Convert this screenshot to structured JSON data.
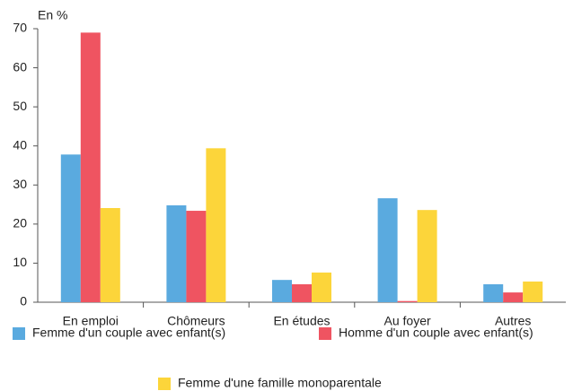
{
  "chart_data": {
    "type": "bar",
    "y_label": "En %",
    "categories": [
      "En emploi",
      "Chômeurs",
      "En études",
      "Au foyer",
      "Autres"
    ],
    "series": [
      {
        "name": "Femme d'un couple avec enfant(s)",
        "color": "#5aaadf",
        "values": [
          37.8,
          24.8,
          5.7,
          26.6,
          4.6
        ]
      },
      {
        "name": "Homme d'un couple avec enfant(s)",
        "color": "#ef5461",
        "values": [
          69,
          23.4,
          4.6,
          0.3,
          2.5
        ]
      },
      {
        "name": "Femme d'une famille monoparentale",
        "color": "#fcd53a",
        "values": [
          24.1,
          39.4,
          7.6,
          23.6,
          5.3
        ]
      }
    ],
    "ylim": [
      0,
      70
    ],
    "yticks": [
      0,
      10,
      20,
      30,
      40,
      50,
      60,
      70
    ]
  }
}
